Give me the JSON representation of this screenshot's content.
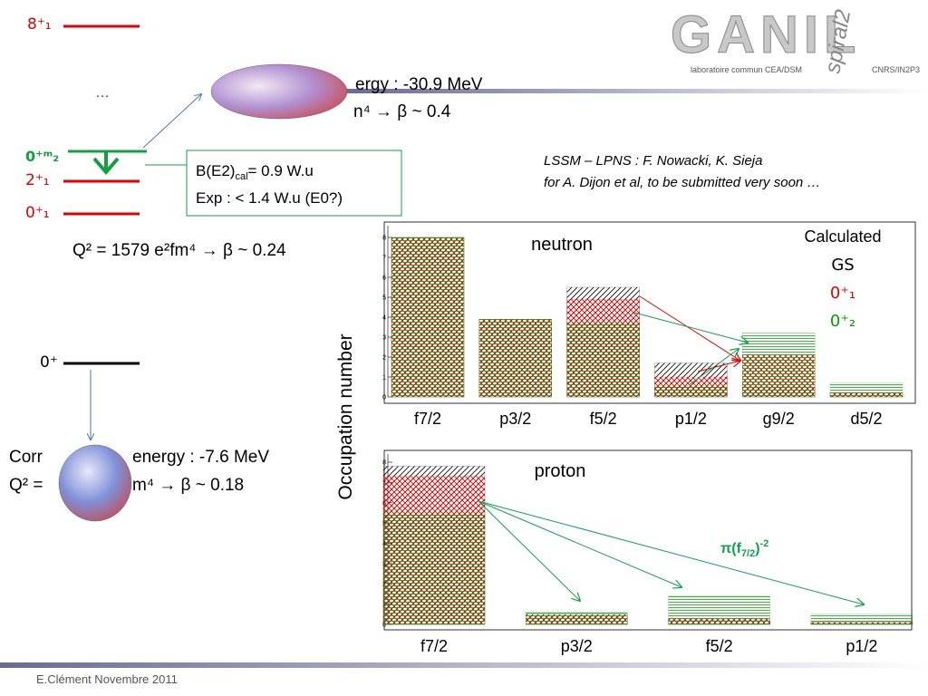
{
  "logo": {
    "name": "GANIL",
    "sub": "spiral2",
    "left": "laboratoire commun CEA/DSM",
    "right": "CNRS/IN2P3"
  },
  "levels": {
    "top": "8⁺₁",
    "dots": "…",
    "l0m2": "0⁺ᵐ₂",
    "l2": "2⁺₁",
    "l01": "0⁺₁",
    "ground": "0⁺"
  },
  "prolate": {
    "line1": "ergy : -30.9 MeV",
    "line2": "n⁴ → β ~ 0.4",
    "q": "Q² = 1579 e²fm⁴ → β ~ 0.24"
  },
  "box": {
    "pre": "B(E2)",
    "sub": "cal",
    "post": "= 0.9 W.u",
    "line2": "Exp : < 1.4 W.u (E0?)"
  },
  "spherical": {
    "a": "Corr",
    "b": "energy : -7.6 MeV",
    "c": "Q² =",
    "d": "m⁴ → β ~ 0.18"
  },
  "credit": {
    "line1": "LSSM – LPNS : F. Nowacki, K. Sieja",
    "line2": "for A. Dijon et al, to be submitted very soon …"
  },
  "ylabel": "Occupation number",
  "annotation": {
    "pre": "π(f",
    "sub": "7/2",
    "mid": ")",
    "sup": "-2"
  },
  "footer": "E.Clément  Novembre 2011",
  "chart_data": [
    {
      "type": "bar",
      "title": "neutron",
      "legend_title": "Calculated",
      "categories": [
        "f7/2",
        "p3/2",
        "f5/2",
        "p1/2",
        "g9/2",
        "d5/2"
      ],
      "series": [
        {
          "name": "GS",
          "color": "#000000",
          "values": [
            8,
            3.9,
            5.5,
            1.7,
            0.5,
            0.2
          ]
        },
        {
          "name": "0⁺₁",
          "color": "#e00000",
          "values": [
            8,
            3.9,
            4.9,
            1.0,
            2.1,
            0.2
          ]
        },
        {
          "name": "0⁺₂",
          "color": "#00a000",
          "values": [
            8,
            3.9,
            3.7,
            0.5,
            3.2,
            0.7
          ]
        }
      ],
      "ylim": [
        0,
        8
      ],
      "yticks": [
        0,
        1,
        2,
        3,
        4,
        5,
        6,
        7,
        8
      ]
    },
    {
      "type": "bar",
      "title": "proton",
      "categories": [
        "f7/2",
        "p3/2",
        "f5/2",
        "p1/2"
      ],
      "series": [
        {
          "color": "#000000",
          "values": [
            7.8,
            0.5,
            0.2,
            0.1
          ]
        },
        {
          "color": "#e00000",
          "values": [
            7.3,
            0.4,
            0.3,
            0.1
          ]
        },
        {
          "color": "#00a000",
          "values": [
            5.5,
            0.6,
            1.4,
            0.5
          ]
        }
      ],
      "ylim": [
        0,
        8
      ],
      "yticks": [
        0,
        1,
        2,
        3,
        4,
        5,
        6,
        7,
        8
      ]
    }
  ]
}
